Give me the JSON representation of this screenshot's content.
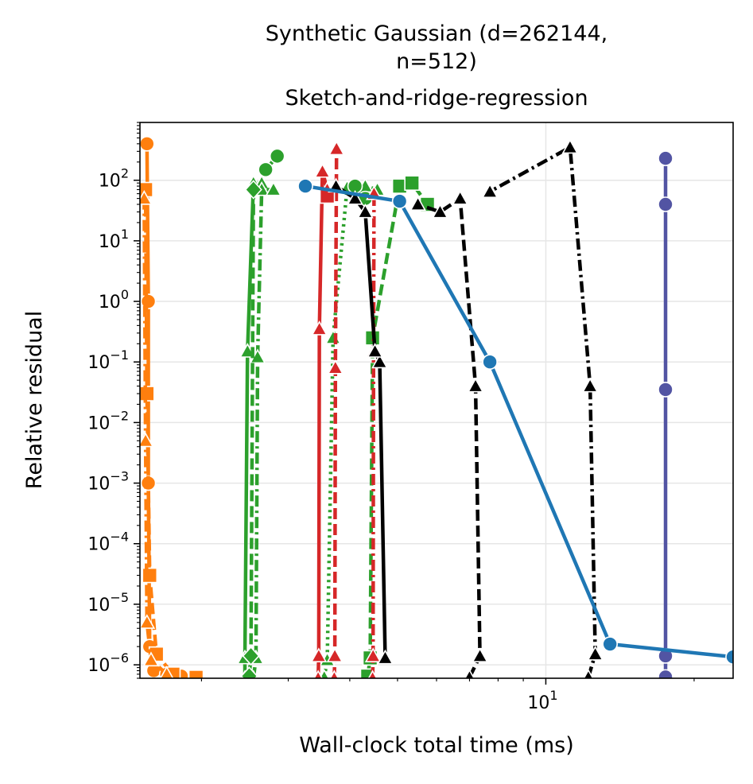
{
  "chart_data": {
    "type": "line",
    "title_lines": [
      "Synthetic Gaussian (d=262144,",
      "n=512)",
      "Sketch-and-ridge-regression"
    ],
    "xlabel": "Wall-clock total time (ms)",
    "ylabel": "Relative residual",
    "x_scale": "log",
    "y_scale": "log",
    "xlim": [
      1.5,
      24
    ],
    "ylim": [
      6e-07,
      900
    ],
    "grid": true,
    "x_ticks": [
      {
        "value": 10,
        "base": "10",
        "exp": "1"
      }
    ],
    "y_ticks": [
      {
        "value": 100,
        "base": "10",
        "exp": "2"
      },
      {
        "value": 10,
        "base": "10",
        "exp": "1"
      },
      {
        "value": 1,
        "base": "10",
        "exp": "0"
      },
      {
        "value": 0.1,
        "base": "10",
        "exp": "−1"
      },
      {
        "value": 0.01,
        "base": "10",
        "exp": "−2"
      },
      {
        "value": 0.001,
        "base": "10",
        "exp": "−3"
      },
      {
        "value": 0.0001,
        "base": "10",
        "exp": "−4"
      },
      {
        "value": 1e-05,
        "base": "10",
        "exp": "−5"
      },
      {
        "value": 1e-06,
        "base": "10",
        "exp": "−6"
      }
    ],
    "series": [
      {
        "color": "#ff7f0e",
        "dash": "solid",
        "marker": "circle",
        "points": [
          [
            1.55,
            400
          ],
          [
            1.56,
            1.0
          ],
          [
            1.56,
            0.001
          ],
          [
            1.57,
            2e-06
          ],
          [
            1.6,
            8e-07
          ],
          [
            1.7,
            7e-07
          ],
          [
            1.82,
            6.5e-07
          ]
        ]
      },
      {
        "color": "#ff7f0e",
        "dash": "dashed",
        "marker": "square",
        "points": [
          [
            1.54,
            70
          ],
          [
            1.55,
            0.03
          ],
          [
            1.57,
            3e-05
          ],
          [
            1.62,
            1.5e-06
          ],
          [
            1.75,
            7e-07
          ],
          [
            1.95,
            6.2e-07
          ]
        ]
      },
      {
        "color": "#ff7f0e",
        "dash": "dashdot",
        "marker": "triangle",
        "points": [
          [
            1.53,
            50
          ],
          [
            1.54,
            0.005
          ],
          [
            1.55,
            5e-06
          ],
          [
            1.58,
            1.2e-06
          ],
          [
            1.7,
            7e-07
          ]
        ]
      },
      {
        "color": "#2ca02c",
        "dash": "solid",
        "marker": "circle",
        "points": [
          [
            2.7,
            150
          ],
          [
            2.85,
            250
          ]
        ]
      },
      {
        "color": "#2ca02c",
        "dash": "solid",
        "marker": "triangle",
        "points": [
          [
            2.45,
            6e-07
          ],
          [
            2.45,
            1.3e-06
          ],
          [
            2.48,
            0.15
          ],
          [
            2.55,
            90
          ],
          [
            2.65,
            90
          ]
        ]
      },
      {
        "color": "#2ca02c",
        "dash": "dashdot",
        "marker": "triangle",
        "points": [
          [
            2.55,
            6e-07
          ],
          [
            2.58,
            1.3e-06
          ],
          [
            2.6,
            0.12
          ],
          [
            2.65,
            70
          ],
          [
            2.8,
            70
          ]
        ]
      },
      {
        "color": "#2ca02c",
        "dash": "dashed",
        "marker": "diamond",
        "points": [
          [
            2.5,
            6.5e-07
          ],
          [
            2.52,
            1.4e-06
          ],
          [
            2.55,
            70
          ]
        ]
      },
      {
        "color": "#2ca02c",
        "dash": "dotted",
        "marker": "triangle",
        "points": [
          [
            3.55,
            6.2e-07
          ],
          [
            3.6,
            1.2e-06
          ],
          [
            3.7,
            0.25
          ],
          [
            3.95,
            75
          ],
          [
            4.3,
            80
          ],
          [
            4.55,
            70
          ]
        ]
      },
      {
        "color": "#2ca02c",
        "dash": "dashed",
        "marker": "square",
        "points": [
          [
            4.35,
            6.5e-07
          ],
          [
            4.4,
            1.3e-06
          ],
          [
            4.45,
            0.25
          ],
          [
            5.05,
            80
          ],
          [
            5.35,
            90
          ],
          [
            5.75,
            40
          ]
        ]
      },
      {
        "color": "#2ca02c",
        "dash": "dashed",
        "marker": "circle",
        "points": [
          [
            4.1,
            80
          ],
          [
            4.3,
            50
          ]
        ]
      },
      {
        "color": "#d62728",
        "dash": "solid",
        "marker": "triangle",
        "points": [
          [
            3.45,
            6e-07
          ],
          [
            3.46,
            1.4e-06
          ],
          [
            3.47,
            0.35
          ],
          [
            3.52,
            140
          ],
          [
            3.6,
            70
          ]
        ]
      },
      {
        "color": "#d62728",
        "dash": "dashed",
        "marker": "triangle",
        "points": [
          [
            3.72,
            6e-07
          ],
          [
            3.73,
            1.4e-06
          ],
          [
            3.74,
            0.08
          ],
          [
            3.76,
            330
          ]
        ]
      },
      {
        "color": "#d62728",
        "dash": "dashdot",
        "marker": "triangle",
        "points": [
          [
            4.45,
            6e-07
          ],
          [
            4.46,
            1.4e-06
          ],
          [
            4.47,
            0.15
          ],
          [
            4.48,
            60
          ]
        ]
      },
      {
        "color": "#d62728",
        "dash": "solid",
        "marker": "square",
        "points": [
          [
            3.6,
            55
          ]
        ]
      },
      {
        "color": "#000000",
        "dash": "solid",
        "marker": "triangle",
        "points": [
          [
            4.72,
            1.3e-06
          ],
          [
            4.6,
            0.1
          ],
          [
            4.5,
            0.15
          ],
          [
            4.3,
            30
          ],
          [
            4.1,
            50
          ],
          [
            3.75,
            80
          ]
        ]
      },
      {
        "color": "#000000",
        "dash": "dashed",
        "marker": "triangle",
        "points": [
          [
            7.0,
            6.2e-07
          ],
          [
            7.35,
            1.4e-06
          ],
          [
            7.2,
            0.04
          ],
          [
            6.7,
            50
          ],
          [
            6.1,
            30
          ],
          [
            5.5,
            40
          ]
        ]
      },
      {
        "color": "#000000",
        "dash": "dashdot",
        "marker": "triangle",
        "points": [
          [
            12.2,
            6.2e-07
          ],
          [
            12.6,
            1.5e-06
          ],
          [
            12.3,
            0.04
          ],
          [
            11.2,
            350
          ],
          [
            7.7,
            65
          ]
        ]
      },
      {
        "color": "#5254a3",
        "dash": "solid",
        "marker": "circle",
        "points": [
          [
            17.5,
            6.3e-07
          ],
          [
            17.5,
            1.4e-06
          ],
          [
            17.5,
            0.035
          ],
          [
            17.5,
            40
          ],
          [
            17.5,
            230
          ]
        ]
      },
      {
        "color": "#1f77b4",
        "dash": "solid",
        "marker": "circle",
        "points": [
          [
            3.25,
            80
          ],
          [
            5.05,
            45
          ],
          [
            7.7,
            0.1
          ],
          [
            13.5,
            2.2e-06
          ],
          [
            24,
            1.35e-06
          ]
        ]
      }
    ]
  }
}
